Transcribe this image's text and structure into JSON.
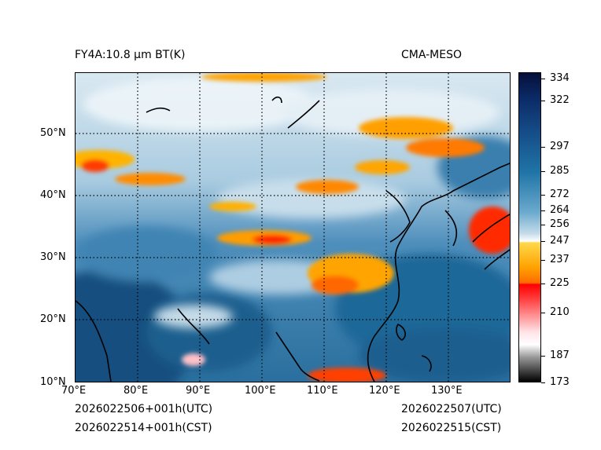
{
  "header": {
    "product_title": "FY4A:10.8 µm BT(K)",
    "source": "CMA-MESO"
  },
  "footer": {
    "init_utc": "2026022506+001h(UTC)",
    "init_cst": "2026022514+001h(CST)",
    "valid_utc": "2026022507(UTC)",
    "valid_cst": "2026022515(CST)"
  },
  "map": {
    "lon_range": [
      70,
      140
    ],
    "lat_range": [
      10,
      60
    ],
    "lon_ticks": [
      "70°E",
      "80°E",
      "90°E",
      "100°E",
      "110°E",
      "120°E",
      "130°E"
    ],
    "lat_ticks": [
      "50°N",
      "40°N",
      "30°N",
      "20°N",
      "10°N"
    ],
    "grid_lons": [
      80,
      90,
      100,
      110,
      120,
      130
    ],
    "grid_lats": [
      20,
      30,
      40,
      50
    ]
  },
  "colorbar": {
    "min": 173,
    "max": 334,
    "tick_labels": [
      "334",
      "322",
      "297",
      "285",
      "272",
      "264",
      "256",
      "247",
      "237",
      "225",
      "210",
      "187",
      "173"
    ],
    "tick_values": [
      334,
      322,
      297,
      285,
      272,
      264,
      256,
      247,
      237,
      225,
      210,
      187,
      173
    ],
    "colors": {
      "very_warm": "#0a1a4d",
      "warm": "#1c6a9a",
      "mild": "#6aa8cc",
      "cool": "#ffffff",
      "cold": "#ffb000",
      "colder": "#ff6a00",
      "coldest": "#ff0000",
      "pink": "#ffd0d8",
      "gray": "#888888",
      "black": "#000000"
    }
  }
}
